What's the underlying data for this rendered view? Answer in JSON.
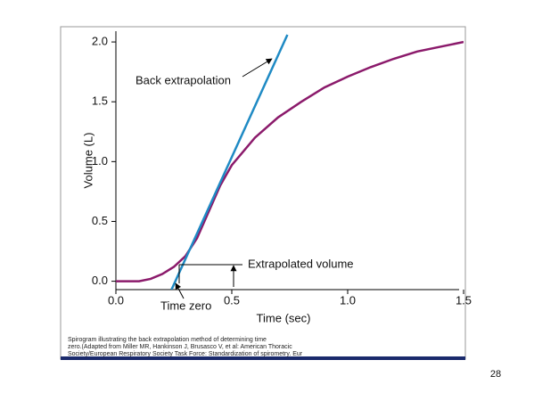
{
  "chart_data": {
    "type": "line",
    "xlabel": "Time (sec)",
    "ylabel": "Volume (L)",
    "xlim": [
      0,
      1.5
    ],
    "ylim": [
      -0.07,
      2.09
    ],
    "xticks": [
      {
        "value": 0,
        "label": "0.0"
      },
      {
        "value": 0.5,
        "label": "0.5"
      },
      {
        "value": 1,
        "label": "1.0"
      },
      {
        "value": 1.5,
        "label": "1.5"
      }
    ],
    "yticks": [
      {
        "value": 0,
        "label": "0.0"
      },
      {
        "value": 0.5,
        "label": "0.5"
      },
      {
        "value": 1,
        "label": "1.0"
      },
      {
        "value": 1.5,
        "label": "1.5"
      },
      {
        "value": 2,
        "label": "2.0"
      }
    ],
    "series": [
      {
        "color": "#8b1a6b",
        "x": [
          0,
          0.1,
          0.15,
          0.2,
          0.25,
          0.3,
          0.35,
          0.4,
          0.45,
          0.5,
          0.6,
          0.7,
          0.8,
          0.9,
          1.0,
          1.1,
          1.2,
          1.3,
          1.4,
          1.5
        ],
        "values": [
          0,
          0,
          0.02,
          0.06,
          0.12,
          0.21,
          0.36,
          0.58,
          0.8,
          0.97,
          1.2,
          1.37,
          1.5,
          1.62,
          1.71,
          1.79,
          1.86,
          1.92,
          1.96,
          2.0
        ]
      },
      {
        "color": "#1f8ac4",
        "x": [
          0.24,
          0.74
        ],
        "values": [
          -0.07,
          2.06
        ]
      }
    ],
    "annotations": [
      "Back extrapolation",
      "Extrapolated volume",
      "Time zero"
    ]
  },
  "caption": [
    "Spirogram illustrating the back extrapolation method of determining time",
    "zero.(Adapted from Miller MR, Hankinson J, Brusasco V, et al: American Thoracic",
    "Society/European Respiratory Society Task Force: Standardization of spirometry. Eur"
  ],
  "page_number": "28"
}
